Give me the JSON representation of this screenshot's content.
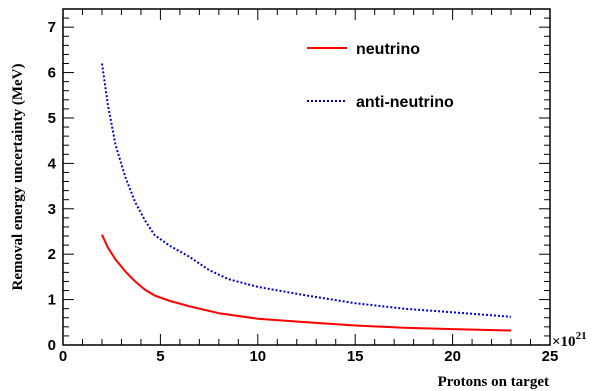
{
  "chart_data": {
    "type": "line",
    "title": "",
    "xlabel": "Protons on target",
    "ylabel": "Removal energy uncertainty (MeV)",
    "x_multiplier_base": "×10",
    "x_multiplier_exponent": "21",
    "xlim": [
      0,
      25
    ],
    "ylim": [
      0,
      7.4
    ],
    "x_ticks": [
      "0",
      "5",
      "10",
      "15",
      "20",
      "25"
    ],
    "y_ticks": [
      "0",
      "1",
      "2",
      "3",
      "4",
      "5",
      "6",
      "7"
    ],
    "grid": false,
    "legend_position": "top-right",
    "series": [
      {
        "name": "neutrino",
        "color": "#ff0000",
        "line_style": "solid",
        "x": [
          2.0,
          2.3,
          2.7,
          3.2,
          3.7,
          4.2,
          4.7,
          5.5,
          6.5,
          8.0,
          10.0,
          12.5,
          15.0,
          17.5,
          20.0,
          23.0
        ],
        "y": [
          2.43,
          2.15,
          1.88,
          1.62,
          1.4,
          1.22,
          1.09,
          0.97,
          0.85,
          0.7,
          0.58,
          0.5,
          0.43,
          0.38,
          0.35,
          0.32
        ]
      },
      {
        "name": "anti-neutrino",
        "color": "#0000cc",
        "line_style": "dotted",
        "x": [
          2.0,
          2.3,
          2.7,
          3.2,
          3.7,
          4.2,
          4.7,
          5.5,
          6.5,
          7.5,
          8.5,
          10.0,
          12.5,
          15.0,
          17.5,
          20.0,
          23.0
        ],
        "y": [
          6.2,
          5.3,
          4.4,
          3.7,
          3.15,
          2.75,
          2.42,
          2.18,
          1.94,
          1.65,
          1.45,
          1.28,
          1.09,
          0.92,
          0.8,
          0.72,
          0.62
        ]
      }
    ]
  }
}
